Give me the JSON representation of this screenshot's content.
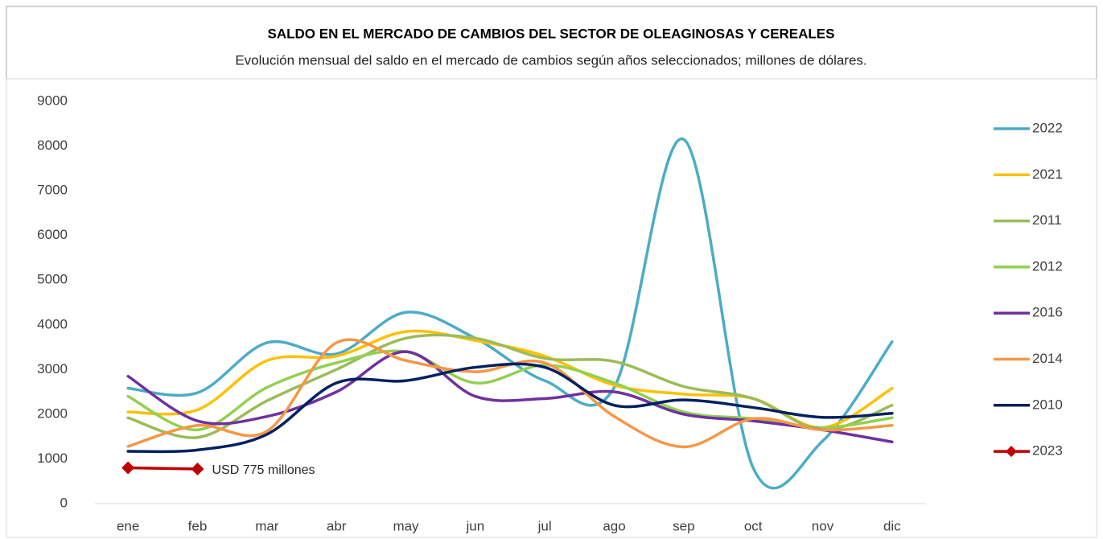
{
  "chart_data": {
    "type": "line",
    "title": "SALDO EN EL MERCADO DE CAMBIOS DEL SECTOR DE OLEAGINOSAS Y CEREALES",
    "subtitle": "Evolución mensual del saldo en el mercado de cambios según años seleccionados; millones de dólares.",
    "categories": [
      "ene",
      "feb",
      "mar",
      "abr",
      "may",
      "jun",
      "jul",
      "ago",
      "sep",
      "oct",
      "nov",
      "dic"
    ],
    "ylim": [
      0,
      9000
    ],
    "yticks": [
      0,
      1000,
      2000,
      3000,
      4000,
      5000,
      6000,
      7000,
      8000,
      9000
    ],
    "grid": false,
    "legend": "right",
    "smooth": true,
    "annotation": "USD 775 millones",
    "series": [
      {
        "name": "2022",
        "color": "#4bacc6",
        "values": [
          2580,
          2480,
          3600,
          3350,
          4280,
          3700,
          2750,
          2600,
          8150,
          800,
          1400,
          3620
        ]
      },
      {
        "name": "2021",
        "color": "#ffc000",
        "values": [
          2050,
          2100,
          3200,
          3300,
          3850,
          3650,
          3300,
          2650,
          2450,
          2350,
          1700,
          2580
        ]
      },
      {
        "name": "2011",
        "color": "#9bbb59",
        "values": [
          1920,
          1480,
          2300,
          3000,
          3700,
          3700,
          3250,
          3180,
          2620,
          2350,
          1650,
          2200
        ]
      },
      {
        "name": "2012",
        "color": "#92d050",
        "values": [
          2400,
          1650,
          2600,
          3150,
          3400,
          2700,
          3100,
          2700,
          2050,
          1900,
          1700,
          1920
        ]
      },
      {
        "name": "2016",
        "color": "#7030a0",
        "values": [
          2850,
          1850,
          1950,
          2500,
          3400,
          2400,
          2350,
          2500,
          2000,
          1850,
          1650,
          1380
        ]
      },
      {
        "name": "2014",
        "color": "#f79646",
        "values": [
          1280,
          1750,
          1620,
          3600,
          3200,
          2950,
          3150,
          1950,
          1270,
          1900,
          1650,
          1750
        ]
      },
      {
        "name": "2010",
        "color": "#002060",
        "values": [
          1170,
          1200,
          1550,
          2700,
          2750,
          3050,
          3050,
          2200,
          2320,
          2150,
          1930,
          2020
        ]
      },
      {
        "name": "2023",
        "color": "#c00000",
        "marker": "diamond",
        "values": [
          800,
          775,
          null,
          null,
          null,
          null,
          null,
          null,
          null,
          null,
          null,
          null
        ]
      }
    ]
  }
}
